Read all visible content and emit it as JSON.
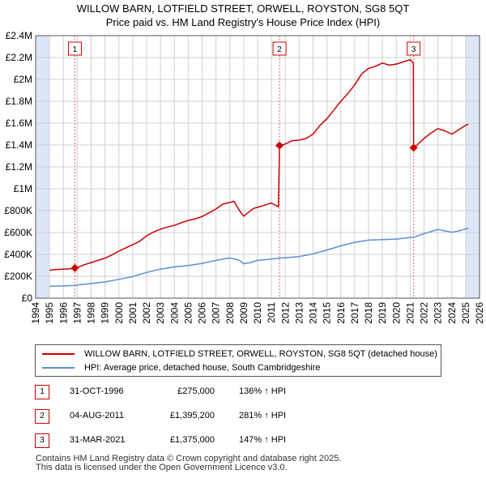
{
  "title": {
    "line1": "WILLOW BARN, LOTFIELD STREET, ORWELL, ROYSTON, SG8 5QT",
    "line2": "Price paid vs. HM Land Registry's House Price Index (HPI)"
  },
  "colors": {
    "price_line": "#cc0000",
    "hpi_line": "#5a8fd6",
    "shade": "#dde6f7",
    "grid": "#d0d0d0",
    "marker_vline": "#dd6666"
  },
  "chart_data": {
    "type": "line",
    "x_range": [
      1994,
      2026
    ],
    "ylim": [
      0,
      2400000
    ],
    "x_tick_labels": [
      "1994",
      "1995",
      "1996",
      "1997",
      "1998",
      "1999",
      "2000",
      "2001",
      "2002",
      "2003",
      "2004",
      "2005",
      "2006",
      "2007",
      "2008",
      "2009",
      "2010",
      "2011",
      "2012",
      "2013",
      "2014",
      "2015",
      "2016",
      "2017",
      "2018",
      "2019",
      "2020",
      "2021",
      "2022",
      "2023",
      "2024",
      "2025",
      "2026"
    ],
    "y_ticks": [
      {
        "value": 0,
        "label": "£0"
      },
      {
        "value": 200000,
        "label": "£200K"
      },
      {
        "value": 400000,
        "label": "£400K"
      },
      {
        "value": 600000,
        "label": "£600K"
      },
      {
        "value": 800000,
        "label": "£800K"
      },
      {
        "value": 1000000,
        "label": "£1M"
      },
      {
        "value": 1200000,
        "label": "£1.2M"
      },
      {
        "value": 1400000,
        "label": "£1.4M"
      },
      {
        "value": 1600000,
        "label": "£1.6M"
      },
      {
        "value": 1800000,
        "label": "£1.8M"
      },
      {
        "value": 2000000,
        "label": "£2M"
      },
      {
        "value": 2200000,
        "label": "£2.2M"
      },
      {
        "value": 2400000,
        "label": "£2.4M"
      }
    ],
    "shaded_regions": [
      [
        1994,
        1995
      ],
      [
        2025,
        2026
      ]
    ],
    "grid": true,
    "series": [
      {
        "name": "WILLOW BARN, LOTFIELD STREET, ORWELL, ROYSTON, SG8 5QT (detached house)",
        "color": "#cc0000",
        "points": [
          [
            1995.0,
            255000
          ],
          [
            1995.5,
            262000
          ],
          [
            1996.0,
            265000
          ],
          [
            1996.5,
            268000
          ],
          [
            1996.83,
            275000
          ],
          [
            1997.0,
            280000
          ],
          [
            1997.5,
            305000
          ],
          [
            1998.0,
            325000
          ],
          [
            1998.5,
            345000
          ],
          [
            1999.0,
            365000
          ],
          [
            1999.5,
            395000
          ],
          [
            2000.0,
            430000
          ],
          [
            2000.5,
            460000
          ],
          [
            2001.0,
            490000
          ],
          [
            2001.5,
            520000
          ],
          [
            2002.0,
            570000
          ],
          [
            2002.5,
            605000
          ],
          [
            2003.0,
            630000
          ],
          [
            2003.5,
            650000
          ],
          [
            2004.0,
            665000
          ],
          [
            2004.5,
            690000
          ],
          [
            2005.0,
            710000
          ],
          [
            2005.5,
            725000
          ],
          [
            2006.0,
            745000
          ],
          [
            2006.5,
            780000
          ],
          [
            2007.0,
            815000
          ],
          [
            2007.5,
            860000
          ],
          [
            2008.0,
            875000
          ],
          [
            2008.3,
            885000
          ],
          [
            2008.7,
            800000
          ],
          [
            2009.0,
            750000
          ],
          [
            2009.3,
            780000
          ],
          [
            2009.7,
            820000
          ],
          [
            2010.0,
            830000
          ],
          [
            2010.5,
            850000
          ],
          [
            2011.0,
            870000
          ],
          [
            2011.5,
            835000
          ],
          [
            2011.58,
            1395200
          ],
          [
            2012.0,
            1410000
          ],
          [
            2012.5,
            1440000
          ],
          [
            2013.0,
            1445000
          ],
          [
            2013.5,
            1460000
          ],
          [
            2014.0,
            1500000
          ],
          [
            2014.5,
            1580000
          ],
          [
            2015.0,
            1640000
          ],
          [
            2015.5,
            1720000
          ],
          [
            2016.0,
            1800000
          ],
          [
            2016.5,
            1870000
          ],
          [
            2017.0,
            1950000
          ],
          [
            2017.5,
            2050000
          ],
          [
            2018.0,
            2100000
          ],
          [
            2018.5,
            2120000
          ],
          [
            2019.0,
            2150000
          ],
          [
            2019.5,
            2130000
          ],
          [
            2020.0,
            2140000
          ],
          [
            2020.5,
            2160000
          ],
          [
            2021.0,
            2180000
          ],
          [
            2021.23,
            2150000
          ],
          [
            2021.25,
            1375000
          ],
          [
            2021.5,
            1400000
          ],
          [
            2022.0,
            1460000
          ],
          [
            2022.5,
            1510000
          ],
          [
            2023.0,
            1550000
          ],
          [
            2023.5,
            1530000
          ],
          [
            2024.0,
            1500000
          ],
          [
            2024.5,
            1540000
          ],
          [
            2025.0,
            1580000
          ],
          [
            2025.2,
            1590000
          ]
        ]
      },
      {
        "name": "HPI: Average price, detached house, South Cambridgeshire",
        "color": "#5a8fd6",
        "points": [
          [
            1995.0,
            108000
          ],
          [
            1996.0,
            112000
          ],
          [
            1996.83,
            117000
          ],
          [
            1997.0,
            120000
          ],
          [
            1998.0,
            133000
          ],
          [
            1999.0,
            148000
          ],
          [
            2000.0,
            172000
          ],
          [
            2001.0,
            198000
          ],
          [
            2002.0,
            235000
          ],
          [
            2003.0,
            265000
          ],
          [
            2004.0,
            285000
          ],
          [
            2005.0,
            298000
          ],
          [
            2006.0,
            318000
          ],
          [
            2007.0,
            345000
          ],
          [
            2008.0,
            368000
          ],
          [
            2008.7,
            345000
          ],
          [
            2009.0,
            315000
          ],
          [
            2009.5,
            325000
          ],
          [
            2010.0,
            345000
          ],
          [
            2011.0,
            358000
          ],
          [
            2011.58,
            366000
          ],
          [
            2012.0,
            370000
          ],
          [
            2013.0,
            380000
          ],
          [
            2014.0,
            405000
          ],
          [
            2015.0,
            440000
          ],
          [
            2016.0,
            478000
          ],
          [
            2017.0,
            510000
          ],
          [
            2018.0,
            530000
          ],
          [
            2019.0,
            535000
          ],
          [
            2020.0,
            540000
          ],
          [
            2021.0,
            555000
          ],
          [
            2021.25,
            556000
          ],
          [
            2022.0,
            590000
          ],
          [
            2023.0,
            628000
          ],
          [
            2023.5,
            615000
          ],
          [
            2024.0,
            602000
          ],
          [
            2024.5,
            615000
          ],
          [
            2025.0,
            632000
          ],
          [
            2025.2,
            640000
          ]
        ]
      }
    ],
    "markers": [
      {
        "label": "1",
        "x": 1996.83,
        "y": 275000
      },
      {
        "label": "2",
        "x": 2011.58,
        "y": 1395200
      },
      {
        "label": "3",
        "x": 2021.25,
        "y": 1375000
      }
    ]
  },
  "legend": {
    "price": "WILLOW BARN, LOTFIELD STREET, ORWELL, ROYSTON, SG8 5QT (detached house)",
    "hpi": "HPI: Average price, detached house, South Cambridgeshire"
  },
  "transactions": [
    {
      "num": "1",
      "date": "31-OCT-1996",
      "price": "£275,000",
      "hpi": "136% ↑ HPI"
    },
    {
      "num": "2",
      "date": "04-AUG-2011",
      "price": "£1,395,200",
      "hpi": "281% ↑ HPI"
    },
    {
      "num": "3",
      "date": "31-MAR-2021",
      "price": "£1,375,000",
      "hpi": "147% ↑ HPI"
    }
  ],
  "footer": {
    "line1": "Contains HM Land Registry data © Crown copyright and database right 2025.",
    "line2": "This data is licensed under the Open Government Licence v3.0."
  }
}
